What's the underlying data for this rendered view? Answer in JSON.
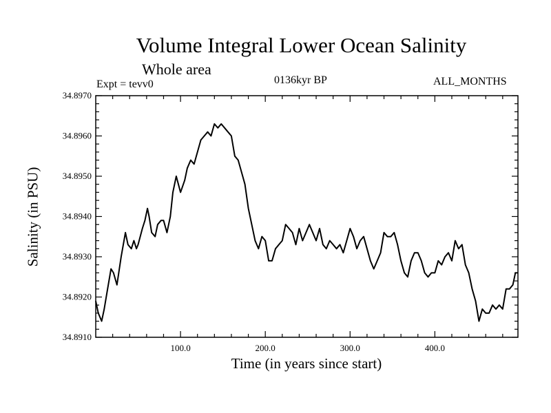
{
  "chart_data": {
    "type": "line",
    "title": "Volume Integral Lower Ocean Salinity",
    "subtitle": "Whole area",
    "info_left": "Expt = tevv0",
    "info_center": "0136kyr BP",
    "info_right": "ALL_MONTHS",
    "xlabel": "Time (in years since start)",
    "ylabel": "Salinity (in PSU)",
    "xlim": [
      0,
      498
    ],
    "ylim": [
      34.891,
      34.897
    ],
    "xticks": [
      100,
      200,
      300,
      400
    ],
    "xtick_labels": [
      "100.0",
      "200.0",
      "300.0",
      "400.0"
    ],
    "yticks": [
      34.891,
      34.892,
      34.893,
      34.894,
      34.895,
      34.896,
      34.897
    ],
    "ytick_labels": [
      "34.8910",
      "34.8920",
      "34.8930",
      "34.8940",
      "34.8950",
      "34.8960",
      "34.8970"
    ],
    "grid": false,
    "line_color": "#000000",
    "series": [
      {
        "x": [
          0,
          3,
          7,
          10,
          14,
          18,
          21,
          25,
          30,
          35,
          38,
          42,
          45,
          48,
          50,
          55,
          58,
          61,
          63,
          66,
          70,
          73,
          77,
          80,
          84,
          88,
          91,
          95,
          100,
          105,
          108,
          112,
          116,
          120,
          124,
          128,
          132,
          136,
          140,
          144,
          148,
          152,
          156,
          160,
          164,
          168,
          172,
          176,
          180,
          184,
          188,
          192,
          196,
          200,
          204,
          208,
          212,
          216,
          220,
          224,
          228,
          232,
          236,
          240,
          244,
          248,
          252,
          256,
          260,
          264,
          268,
          272,
          276,
          280,
          284,
          288,
          292,
          296,
          300,
          304,
          308,
          312,
          316,
          320,
          324,
          328,
          332,
          336,
          340,
          344,
          348,
          352,
          356,
          360,
          364,
          368,
          372,
          376,
          380,
          384,
          388,
          392,
          396,
          400,
          404,
          408,
          412,
          416,
          420,
          424,
          428,
          432,
          436,
          440,
          444,
          448,
          452,
          456,
          460,
          464,
          468,
          472,
          476,
          480,
          484,
          488,
          492,
          495,
          498
        ],
        "y": [
          34.8919,
          34.8916,
          34.8914,
          34.8917,
          34.8922,
          34.8927,
          34.8926,
          34.8923,
          34.893,
          34.8936,
          34.8933,
          34.8932,
          34.8934,
          34.8932,
          34.8933,
          34.8937,
          34.8939,
          34.8942,
          34.894,
          34.8936,
          34.8935,
          34.8938,
          34.8939,
          34.8939,
          34.8936,
          34.894,
          34.8946,
          34.895,
          34.8946,
          34.8949,
          34.8952,
          34.8954,
          34.8953,
          34.8956,
          34.8959,
          34.896,
          34.8961,
          34.896,
          34.8963,
          34.8962,
          34.8963,
          34.8962,
          34.8961,
          34.896,
          34.8955,
          34.8954,
          34.8951,
          34.8948,
          34.8942,
          34.8938,
          34.8934,
          34.8932,
          34.8935,
          34.8934,
          34.8929,
          34.8929,
          34.8932,
          34.8933,
          34.8934,
          34.8938,
          34.8937,
          34.8936,
          34.8933,
          34.8937,
          34.8934,
          34.8936,
          34.8938,
          34.8936,
          34.8934,
          34.8937,
          34.8933,
          34.8932,
          34.8934,
          34.8933,
          34.8932,
          34.8933,
          34.8931,
          34.8934,
          34.8937,
          34.8935,
          34.8932,
          34.8934,
          34.8935,
          34.8932,
          34.8929,
          34.8927,
          34.8929,
          34.8931,
          34.8936,
          34.8935,
          34.8935,
          34.8936,
          34.8933,
          34.8929,
          34.8926,
          34.8925,
          34.8929,
          34.8931,
          34.8931,
          34.8929,
          34.8926,
          34.8925,
          34.8926,
          34.8926,
          34.8929,
          34.8928,
          34.893,
          34.8931,
          34.8929,
          34.8934,
          34.8932,
          34.8933,
          34.8928,
          34.8926,
          34.8922,
          34.8919,
          34.8914,
          34.8917,
          34.8916,
          34.8916,
          34.8918,
          34.8917,
          34.8918,
          34.8917,
          34.8922,
          34.8922,
          34.8923,
          34.8926,
          34.8926
        ]
      }
    ]
  }
}
